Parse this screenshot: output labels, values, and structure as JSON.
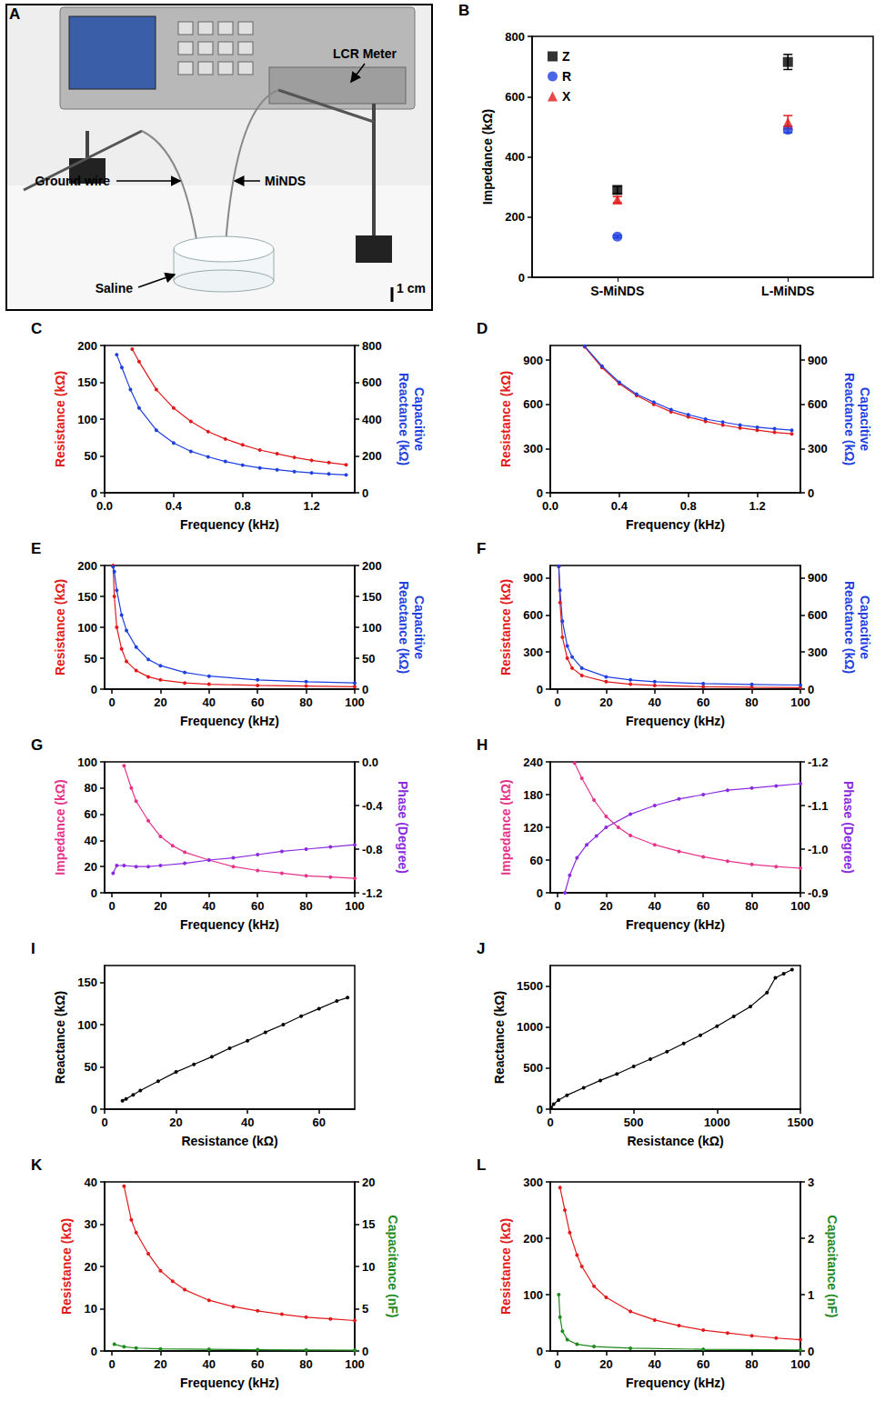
{
  "chart_data": [
    {
      "panel": "A",
      "type": "photo",
      "labels": {
        "meter": "LCR Meter",
        "ground": "Ground wire",
        "probe": "MiNDS",
        "saline": "Saline",
        "scale": "1 cm"
      }
    },
    {
      "panel": "B",
      "type": "scatter",
      "ylabel": "Impedance (kΩ)",
      "categories": [
        "S-MiNDS",
        "L-MiNDS"
      ],
      "ylim": [
        0,
        800
      ],
      "yticks": [
        0,
        200,
        400,
        600,
        800
      ],
      "legend": "top-left",
      "grid": false,
      "series": [
        {
          "name": "Z",
          "color": "#000000",
          "marker": "square",
          "values": [
            290,
            715
          ],
          "errors": [
            12,
            25
          ]
        },
        {
          "name": "R",
          "color": "#1f3fe0",
          "marker": "circle",
          "values": [
            135,
            490
          ],
          "errors": [
            4,
            10
          ]
        },
        {
          "name": "X",
          "color": "#e31a1c",
          "marker": "triangle",
          "values": [
            258,
            515
          ],
          "errors": [
            10,
            22
          ]
        }
      ]
    },
    {
      "panel": "C",
      "type": "line",
      "marker": "circle",
      "grid": false,
      "xlabel": "Frequency (kHz)",
      "ylabel": "Resistance (kΩ)",
      "y2label": "Capacitive Reactance (kΩ)",
      "xlim": [
        0,
        1.45
      ],
      "xticks": [
        {
          "value": 0,
          "label": "0.0"
        },
        0.4,
        0.8,
        1.2
      ],
      "ylim": [
        0,
        200
      ],
      "yticks": [
        0,
        50,
        100,
        150,
        200
      ],
      "y2lim": [
        0,
        800
      ],
      "y2ticks": [
        0,
        200,
        400,
        600,
        800
      ],
      "series": [
        {
          "color": "#e31a1c",
          "x": [
            0.16,
            0.2,
            0.3,
            0.4,
            0.5,
            0.6,
            0.7,
            0.8,
            0.9,
            1.0,
            1.1,
            1.2,
            1.3,
            1.4
          ],
          "values": [
            195,
            178,
            140,
            115,
            97,
            83,
            73,
            65,
            58,
            53,
            48,
            44,
            41,
            38
          ]
        },
        {
          "color": "#1f3fe0",
          "axis": "y2",
          "x": [
            0.07,
            0.1,
            0.15,
            0.2,
            0.3,
            0.4,
            0.5,
            0.6,
            0.7,
            0.8,
            0.9,
            1.0,
            1.1,
            1.2,
            1.3,
            1.4
          ],
          "values": [
            750,
            680,
            560,
            460,
            340,
            270,
            225,
            195,
            170,
            150,
            135,
            125,
            115,
            108,
            102,
            97
          ]
        }
      ]
    },
    {
      "panel": "D",
      "type": "line",
      "marker": "circle",
      "grid": false,
      "xlabel": "Frequency (kHz)",
      "ylabel": "Resistance (kΩ)",
      "y2label": "Capacitive Reactance (kΩ)",
      "xlim": [
        0,
        1.45
      ],
      "xticks": [
        {
          "value": 0,
          "label": "0.0"
        },
        0.4,
        0.8,
        1.2
      ],
      "ylim": [
        0,
        1000
      ],
      "yticks": [
        0,
        300,
        600,
        900
      ],
      "y2lim": [
        0,
        1000
      ],
      "y2ticks": [
        0,
        300,
        600,
        900
      ],
      "series": [
        {
          "color": "#e31a1c",
          "x": [
            0.2,
            0.3,
            0.4,
            0.5,
            0.6,
            0.7,
            0.8,
            0.9,
            1.0,
            1.1,
            1.2,
            1.3,
            1.4
          ],
          "values": [
            990,
            850,
            740,
            660,
            600,
            550,
            515,
            485,
            460,
            440,
            425,
            410,
            400
          ]
        },
        {
          "color": "#1f3fe0",
          "axis": "y2",
          "x": [
            0.2,
            0.3,
            0.4,
            0.5,
            0.6,
            0.7,
            0.8,
            0.9,
            1.0,
            1.1,
            1.2,
            1.3,
            1.4
          ],
          "values": [
            995,
            860,
            750,
            670,
            615,
            565,
            530,
            500,
            480,
            460,
            445,
            435,
            425
          ]
        }
      ]
    },
    {
      "panel": "E",
      "type": "line",
      "marker": "circle",
      "grid": false,
      "xlabel": "Frequency (kHz)",
      "ylabel": "Resistance (kΩ)",
      "y2label": "Capacitive Reactance (kΩ)",
      "xlim": [
        -3,
        100
      ],
      "xticks": [
        0,
        20,
        40,
        60,
        80,
        100
      ],
      "ylim": [
        0,
        200
      ],
      "yticks": [
        0,
        50,
        100,
        150,
        200
      ],
      "y2lim": [
        0,
        200
      ],
      "y2ticks": [
        0,
        50,
        100,
        150,
        200
      ],
      "series": [
        {
          "color": "#e31a1c",
          "x": [
            0.5,
            1,
            2,
            4,
            6,
            10,
            15,
            20,
            30,
            40,
            60,
            80,
            100
          ],
          "values": [
            200,
            150,
            100,
            65,
            45,
            30,
            20,
            15,
            10,
            8,
            6,
            5,
            4
          ]
        },
        {
          "color": "#1f3fe0",
          "axis": "y2",
          "x": [
            0.5,
            1,
            2,
            4,
            6,
            10,
            15,
            20,
            30,
            40,
            60,
            80,
            100
          ],
          "values": [
            198,
            190,
            160,
            120,
            95,
            68,
            48,
            38,
            27,
            21,
            15,
            12,
            10
          ]
        }
      ]
    },
    {
      "panel": "F",
      "type": "line",
      "marker": "circle",
      "grid": false,
      "xlabel": "Frequency (kHz)",
      "ylabel": "Resistance (kΩ)",
      "y2label": "Capacitive Reactance (kΩ)",
      "xlim": [
        -3,
        100
      ],
      "xticks": [
        0,
        20,
        40,
        60,
        80,
        100
      ],
      "ylim": [
        0,
        1000
      ],
      "yticks": [
        0,
        300,
        600,
        900
      ],
      "y2lim": [
        0,
        1000
      ],
      "y2ticks": [
        0,
        300,
        600,
        900
      ],
      "series": [
        {
          "color": "#e31a1c",
          "x": [
            0.5,
            1,
            2,
            4,
            6,
            10,
            20,
            30,
            40,
            60,
            80,
            100
          ],
          "values": [
            990,
            700,
            420,
            250,
            170,
            110,
            60,
            40,
            30,
            20,
            15,
            12
          ]
        },
        {
          "color": "#1f3fe0",
          "axis": "y2",
          "x": [
            0.5,
            1,
            2,
            4,
            6,
            10,
            20,
            30,
            40,
            60,
            80,
            100
          ],
          "values": [
            995,
            800,
            550,
            350,
            260,
            170,
            100,
            75,
            60,
            45,
            38,
            33
          ]
        }
      ]
    },
    {
      "panel": "G",
      "type": "line",
      "marker": "circle",
      "grid": false,
      "xlabel": "Frequency (kHz)",
      "ylabel": "Impedance (kΩ)",
      "y2label": "Phase (Degree)",
      "xlim": [
        -3,
        100
      ],
      "xticks": [
        0,
        20,
        40,
        60,
        80,
        100
      ],
      "ylim": [
        0,
        100
      ],
      "yticks": [
        0,
        20,
        40,
        60,
        80,
        100
      ],
      "y2lim": [
        -1.2,
        0
      ],
      "y2ticks": [
        {
          "value": 0,
          "label": "0.0"
        },
        -0.4,
        -0.8,
        -1.2
      ],
      "series": [
        {
          "color": "#e6338a",
          "x": [
            5,
            8,
            10,
            15,
            20,
            25,
            30,
            40,
            50,
            60,
            70,
            80,
            90,
            100
          ],
          "values": [
            97,
            80,
            70,
            55,
            43,
            36,
            31,
            25,
            20,
            17,
            15,
            13,
            12,
            11
          ]
        },
        {
          "color": "#8b2be0",
          "axis": "y2",
          "x": [
            0.5,
            2,
            5,
            10,
            15,
            20,
            30,
            40,
            50,
            60,
            70,
            80,
            90,
            100
          ],
          "values": [
            -1.02,
            -0.95,
            -0.95,
            -0.96,
            -0.96,
            -0.95,
            -0.93,
            -0.9,
            -0.88,
            -0.85,
            -0.82,
            -0.8,
            -0.78,
            -0.76
          ]
        }
      ]
    },
    {
      "panel": "H",
      "type": "line",
      "marker": "circle",
      "grid": false,
      "xlabel": "Frequency (kHz)",
      "ylabel": "Impedance (kΩ)",
      "y2label": "Phase (Degree)",
      "xlim": [
        -3,
        100
      ],
      "xticks": [
        0,
        20,
        40,
        60,
        80,
        100
      ],
      "ylim": [
        0,
        240
      ],
      "yticks": [
        0,
        60,
        120,
        180,
        240
      ],
      "y2lim": [
        -0.9,
        -1.2
      ],
      "y2ticks": [
        -1.2,
        -1.1,
        {
          "value": -1.0,
          "label": "-1.0"
        },
        -0.9
      ],
      "series": [
        {
          "color": "#e6338a",
          "x": [
            7,
            10,
            15,
            20,
            25,
            30,
            40,
            50,
            60,
            70,
            80,
            90,
            100
          ],
          "values": [
            238,
            210,
            170,
            140,
            120,
            105,
            88,
            76,
            66,
            58,
            52,
            48,
            45
          ]
        },
        {
          "color": "#8b2be0",
          "axis": "y2",
          "x": [
            3,
            5,
            8,
            12,
            16,
            20,
            30,
            40,
            50,
            60,
            70,
            80,
            90,
            100
          ],
          "values": [
            -0.9,
            -0.94,
            -0.98,
            -1.01,
            -1.03,
            -1.05,
            -1.08,
            -1.1,
            -1.115,
            -1.125,
            -1.135,
            -1.14,
            -1.145,
            -1.15
          ]
        }
      ]
    },
    {
      "panel": "I",
      "type": "line",
      "marker": "circle",
      "grid": false,
      "xlabel": "Resistance (kΩ)",
      "ylabel": "Reactance (kΩ)",
      "xlim": [
        0,
        70
      ],
      "xticks": [
        0,
        20,
        40,
        60
      ],
      "ylim": [
        0,
        170
      ],
      "yticks": [
        0,
        50,
        100,
        150
      ],
      "series": [
        {
          "color": "#000000",
          "x": [
            5,
            6,
            8,
            10,
            15,
            20,
            25,
            30,
            35,
            40,
            45,
            50,
            55,
            60,
            65,
            68
          ],
          "values": [
            10,
            12,
            17,
            22,
            33,
            44,
            53,
            62,
            72,
            81,
            91,
            100,
            110,
            119,
            128,
            132
          ]
        }
      ]
    },
    {
      "panel": "J",
      "type": "line",
      "marker": "circle",
      "grid": false,
      "xlabel": "Resistance (kΩ)",
      "ylabel": "Reactance (kΩ)",
      "xlim": [
        0,
        1500
      ],
      "xticks": [
        0,
        500,
        1000,
        1500
      ],
      "ylim": [
        0,
        1750
      ],
      "yticks": [
        0,
        500,
        1000,
        1500
      ],
      "series": [
        {
          "color": "#000000",
          "x": [
            5,
            20,
            50,
            100,
            200,
            300,
            400,
            500,
            600,
            700,
            800,
            900,
            1000,
            1100,
            1200,
            1300,
            1350,
            1400,
            1450
          ],
          "values": [
            20,
            60,
            110,
            170,
            260,
            350,
            430,
            520,
            610,
            700,
            800,
            900,
            1010,
            1130,
            1250,
            1420,
            1600,
            1650,
            1700
          ]
        }
      ]
    },
    {
      "panel": "K",
      "type": "line",
      "marker": "circle",
      "grid": false,
      "xlabel": "Frequency (kHz)",
      "ylabel": "Resistance (kΩ)",
      "y2label": "Capacitance (nF)",
      "xlim": [
        -3,
        100
      ],
      "xticks": [
        0,
        20,
        40,
        60,
        80,
        100
      ],
      "ylim": [
        0,
        40
      ],
      "yticks": [
        0,
        10,
        20,
        30,
        40
      ],
      "y2lim": [
        0,
        20
      ],
      "y2ticks": [
        0,
        5,
        10,
        15,
        20
      ],
      "series": [
        {
          "color": "#e31a1c",
          "x": [
            5,
            8,
            10,
            15,
            20,
            25,
            30,
            40,
            50,
            60,
            70,
            80,
            90,
            100
          ],
          "values": [
            39,
            31,
            28,
            23,
            19,
            16.5,
            14.5,
            12,
            10.5,
            9.5,
            8.7,
            8,
            7.6,
            7.2
          ]
        },
        {
          "color": "#1e8a1e",
          "axis": "y2",
          "x": [
            1,
            5,
            10,
            20,
            40,
            60,
            80,
            100
          ],
          "values": [
            0.8,
            0.5,
            0.35,
            0.25,
            0.2,
            0.15,
            0.12,
            0.1
          ]
        }
      ]
    },
    {
      "panel": "L",
      "type": "line",
      "marker": "circle",
      "grid": false,
      "xlabel": "Frequency (kHz)",
      "ylabel": "Resistance (kΩ)",
      "y2label": "Capacitance (nF)",
      "xlim": [
        -3,
        100
      ],
      "xticks": [
        0,
        20,
        40,
        60,
        80,
        100
      ],
      "ylim": [
        0,
        300
      ],
      "yticks": [
        0,
        100,
        200,
        300
      ],
      "y2lim": [
        0,
        3
      ],
      "y2ticks": [
        0,
        1,
        2,
        3
      ],
      "series": [
        {
          "color": "#e31a1c",
          "x": [
            1,
            3,
            5,
            8,
            10,
            15,
            20,
            30,
            40,
            50,
            60,
            70,
            80,
            90,
            100
          ],
          "values": [
            290,
            250,
            210,
            170,
            150,
            115,
            95,
            70,
            55,
            45,
            37,
            32,
            27,
            23,
            20
          ]
        },
        {
          "color": "#1e8a1e",
          "axis": "y2",
          "x": [
            0.5,
            1,
            2,
            4,
            8,
            15,
            30,
            60,
            100
          ],
          "values": [
            1.0,
            0.6,
            0.35,
            0.2,
            0.12,
            0.08,
            0.05,
            0.03,
            0.02
          ]
        }
      ]
    }
  ]
}
